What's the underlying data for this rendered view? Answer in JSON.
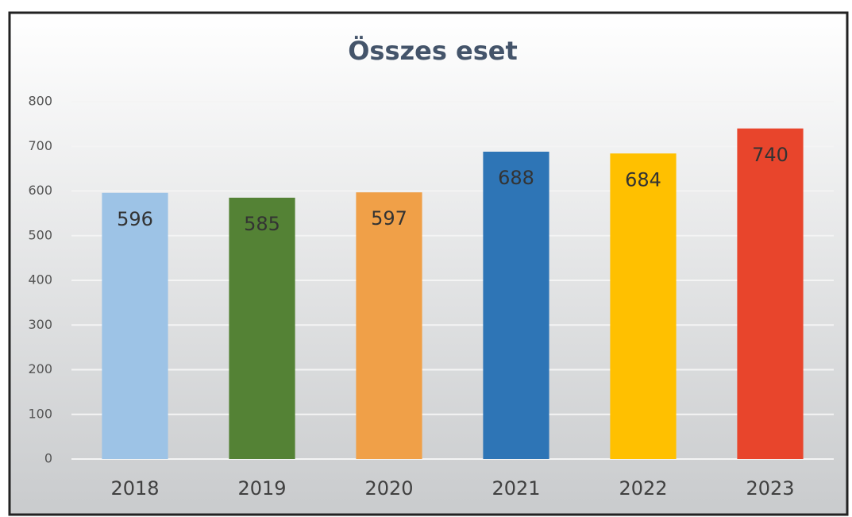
{
  "chart_data": {
    "type": "bar",
    "title": "Összes eset",
    "categories": [
      "2018",
      "2019",
      "2020",
      "2021",
      "2022",
      "2023"
    ],
    "values": [
      596,
      585,
      597,
      688,
      684,
      740
    ],
    "colors": [
      "#9dc3e6",
      "#548235",
      "#f0a048",
      "#2e75b6",
      "#ffc000",
      "#e8452c"
    ],
    "ylim": [
      0,
      800
    ],
    "yticks": [
      0,
      100,
      200,
      300,
      400,
      500,
      600,
      700,
      800
    ],
    "grid": true
  }
}
